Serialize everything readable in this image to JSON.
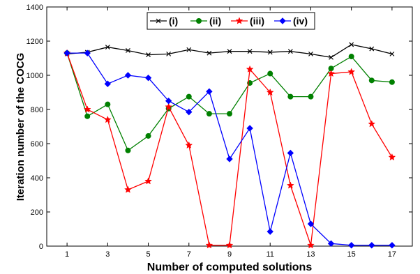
{
  "chart_data": {
    "type": "line",
    "xlabel": "Number of computed solutions",
    "ylabel": "Iteration number of the COCG",
    "xlim": [
      0,
      18
    ],
    "ylim": [
      0,
      1400
    ],
    "xticks": [
      1,
      3,
      5,
      7,
      9,
      11,
      13,
      15,
      17
    ],
    "yticks": [
      0,
      200,
      400,
      600,
      800,
      1000,
      1200,
      1400
    ],
    "grid": false,
    "legend_position": "top-center",
    "x": [
      1,
      2,
      3,
      4,
      5,
      6,
      7,
      8,
      9,
      10,
      11,
      12,
      13,
      14,
      15,
      16,
      17
    ],
    "series": [
      {
        "name": "(i)",
        "color": "#000000",
        "marker": "x",
        "values": [
          1125,
          1135,
          1165,
          1145,
          1120,
          1125,
          1150,
          1130,
          1140,
          1140,
          1135,
          1140,
          1125,
          1105,
          1180,
          1155,
          1125
        ]
      },
      {
        "name": "(ii)",
        "color": "#008000",
        "marker": "circle",
        "values": [
          1130,
          760,
          830,
          560,
          645,
          805,
          875,
          775,
          775,
          955,
          1010,
          875,
          875,
          1040,
          1110,
          970,
          960
        ]
      },
      {
        "name": "(iii)",
        "color": "#ff0000",
        "marker": "star",
        "values": [
          1130,
          800,
          740,
          330,
          380,
          815,
          590,
          5,
          5,
          1035,
          900,
          355,
          5,
          1010,
          1020,
          715,
          520
        ]
      },
      {
        "name": "(iv)",
        "color": "#0000ff",
        "marker": "diamond",
        "values": [
          1130,
          1130,
          950,
          1000,
          985,
          850,
          785,
          905,
          510,
          690,
          85,
          545,
          130,
          15,
          5,
          5,
          5
        ]
      }
    ]
  }
}
